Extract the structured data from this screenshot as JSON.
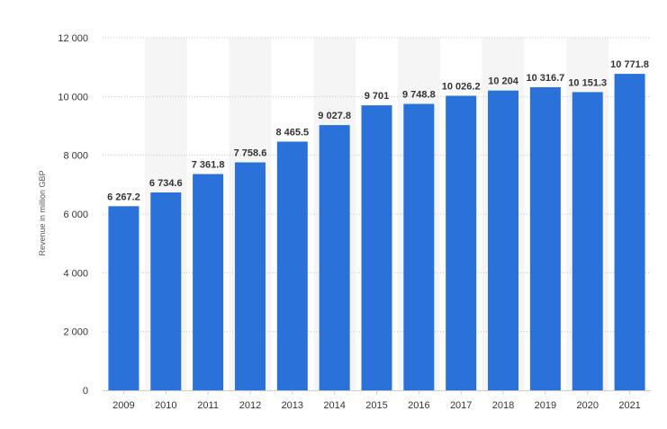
{
  "chart_data": {
    "type": "bar",
    "title": "",
    "xlabel": "",
    "ylabel": "Revenue in million GBP",
    "categories": [
      "2009",
      "2010",
      "2011",
      "2012",
      "2013",
      "2014",
      "2015",
      "2016",
      "2017",
      "2018",
      "2019",
      "2020",
      "2021"
    ],
    "values": [
      6267.2,
      6734.6,
      7361.8,
      7758.6,
      8465.5,
      9027.8,
      9701,
      9748.8,
      10026.2,
      10204,
      10316.7,
      10151.3,
      10771.8
    ],
    "value_labels": [
      "6 267.2",
      "6 734.6",
      "7 361.8",
      "7 758.6",
      "8 465.5",
      "9 027.8",
      "9 701",
      "9 748.8",
      "10 026.2",
      "10 204",
      "10 316.7",
      "10 151.3",
      "10 771.8"
    ],
    "ylim": [
      0,
      12000
    ],
    "y_ticks": [
      0,
      2000,
      4000,
      6000,
      8000,
      10000,
      12000
    ],
    "y_tick_labels": [
      "0",
      "2 000",
      "4 000",
      "6 000",
      "8 000",
      "10 000",
      "12 000"
    ],
    "grid": true,
    "alternating_column_shading": true,
    "legend": "none",
    "colors": {
      "bar": "#2a72d9",
      "shade": "#f5f5f5",
      "grid": "#c8c8c8"
    }
  }
}
